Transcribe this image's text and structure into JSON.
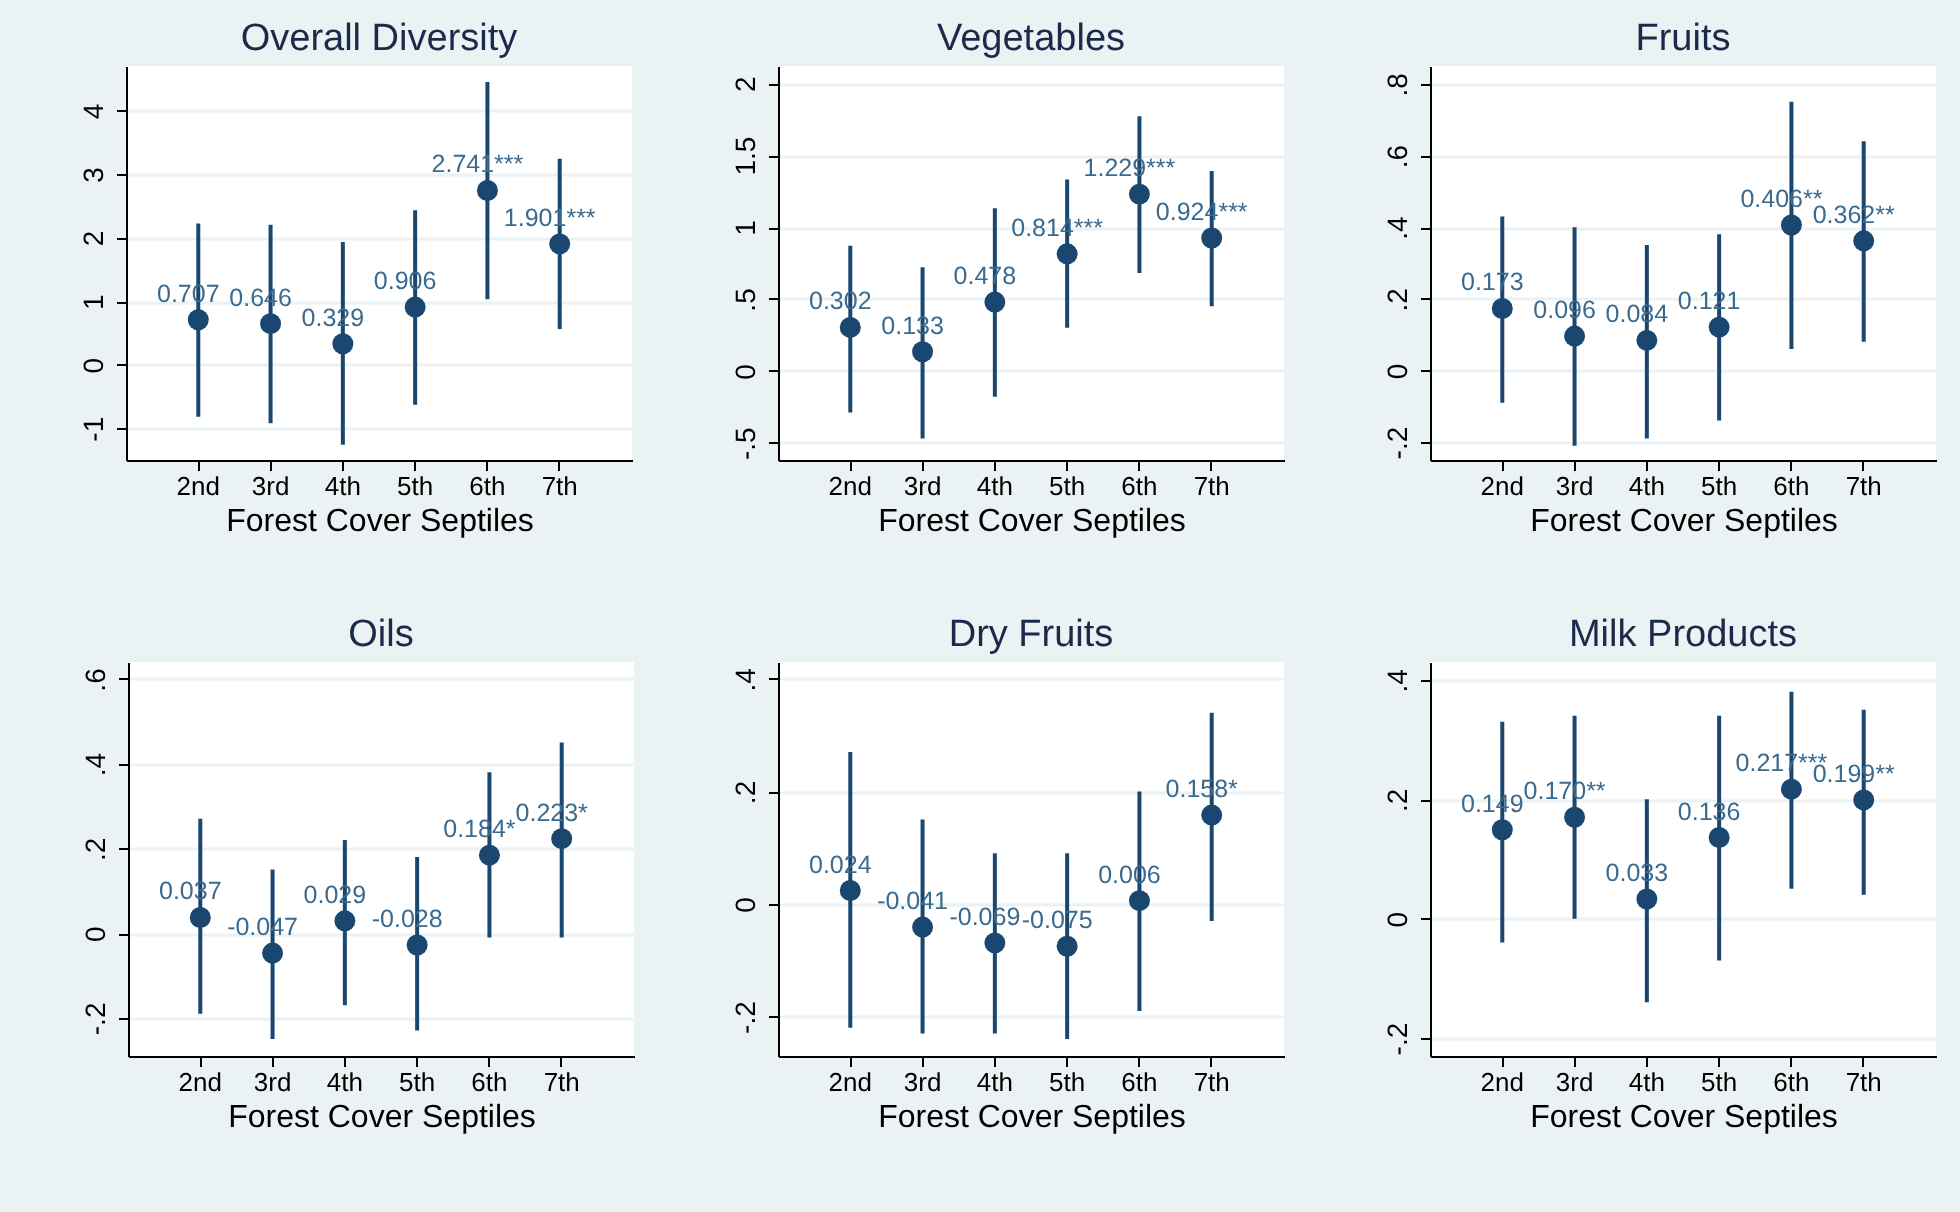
{
  "chart_data": [
    {
      "type": "scatter",
      "title": "Overall Diversity",
      "xlabel": "Forest Cover Septiles",
      "categories": [
        "2nd",
        "3rd",
        "4th",
        "5th",
        "6th",
        "7th"
      ],
      "values": [
        0.707,
        0.646,
        0.329,
        0.906,
        2.741,
        1.901
      ],
      "value_labels": [
        "0.707",
        "0.646",
        "0.329",
        "0.906",
        "2.741***",
        "1.901***"
      ],
      "errors": [
        [
          -0.82,
          2.22
        ],
        [
          -0.92,
          2.2
        ],
        [
          -1.26,
          1.93
        ],
        [
          -0.63,
          2.43
        ],
        [
          1.03,
          4.45
        ],
        [
          0.56,
          3.24
        ]
      ],
      "color": "#1a476f",
      "marker": "circle",
      "grid": "y",
      "ylim": [
        -1.5,
        4.7
      ],
      "yticks": [
        -1,
        0,
        1,
        2,
        3,
        4
      ]
    },
    {
      "type": "scatter",
      "title": "Vegetables",
      "xlabel": "Forest Cover Septiles",
      "categories": [
        "2nd",
        "3rd",
        "4th",
        "5th",
        "6th",
        "7th"
      ],
      "values": [
        0.302,
        0.133,
        0.478,
        0.814,
        1.229,
        0.924
      ],
      "value_labels": [
        "0.302",
        "0.133",
        "0.478",
        "0.814***",
        "1.229***",
        "0.924***"
      ],
      "errors": [
        [
          -0.29,
          0.87
        ],
        [
          -0.47,
          0.72
        ],
        [
          -0.18,
          1.13
        ],
        [
          0.3,
          1.33
        ],
        [
          0.68,
          1.77
        ],
        [
          0.45,
          1.39
        ]
      ],
      "color": "#1a476f",
      "marker": "circle",
      "grid": "y",
      "ylim": [
        -0.62,
        2.12
      ],
      "yticks": [
        {
          "value": -0.5,
          "label": "-.5"
        },
        0,
        {
          "value": 0.5,
          "label": ".5"
        },
        1,
        1.5,
        2
      ]
    },
    {
      "type": "scatter",
      "title": "Fruits",
      "xlabel": "Forest Cover Septiles",
      "categories": [
        "2nd",
        "3rd",
        "4th",
        "5th",
        "6th",
        "7th"
      ],
      "values": [
        0.173,
        0.096,
        0.084,
        0.121,
        0.406,
        0.362
      ],
      "value_labels": [
        "0.173",
        "0.096",
        "0.084",
        "0.121",
        "0.406**",
        "0.362**"
      ],
      "errors": [
        [
          -0.09,
          0.43
        ],
        [
          -0.21,
          0.4
        ],
        [
          -0.19,
          0.35
        ],
        [
          -0.14,
          0.38
        ],
        [
          0.06,
          0.75
        ],
        [
          0.08,
          0.64
        ]
      ],
      "color": "#1a476f",
      "marker": "circle",
      "grid": "y",
      "ylim": [
        -0.25,
        0.85
      ],
      "yticks": [
        {
          "value": -0.2,
          "label": "-.2"
        },
        0,
        {
          "value": 0.2,
          "label": ".2"
        },
        {
          "value": 0.4,
          "label": ".4"
        },
        {
          "value": 0.6,
          "label": ".6"
        },
        {
          "value": 0.8,
          "label": ".8"
        }
      ]
    },
    {
      "type": "scatter",
      "title": "Oils",
      "xlabel": "Forest Cover Septiles",
      "categories": [
        "2nd",
        "3rd",
        "4th",
        "5th",
        "6th",
        "7th"
      ],
      "values": [
        0.037,
        -0.047,
        0.029,
        -0.028,
        0.184,
        0.223
      ],
      "value_labels": [
        "0.037",
        "-0.047",
        "0.029",
        "-0.028",
        "0.184*",
        "0.223*"
      ],
      "errors": [
        [
          -0.19,
          0.27
        ],
        [
          -0.25,
          0.15
        ],
        [
          -0.17,
          0.22
        ],
        [
          -0.23,
          0.18
        ],
        [
          -0.01,
          0.38
        ],
        [
          -0.01,
          0.45
        ]
      ],
      "color": "#1a476f",
      "marker": "circle",
      "grid": "y",
      "ylim": [
        -0.29,
        0.64
      ],
      "yticks": [
        {
          "value": -0.2,
          "label": "-.2"
        },
        0,
        {
          "value": 0.2,
          "label": ".2"
        },
        {
          "value": 0.4,
          "label": ".4"
        },
        {
          "value": 0.6,
          "label": ".6"
        }
      ]
    },
    {
      "type": "scatter",
      "title": "Dry Fruits",
      "xlabel": "Forest Cover Septiles",
      "categories": [
        "2nd",
        "3rd",
        "4th",
        "5th",
        "6th",
        "7th"
      ],
      "values": [
        0.024,
        -0.041,
        -0.069,
        -0.075,
        0.006,
        0.158
      ],
      "value_labels": [
        "0.024",
        "-0.041",
        "-0.069",
        "-0.075",
        "0.006",
        "0.158*"
      ],
      "errors": [
        [
          -0.22,
          0.27
        ],
        [
          -0.23,
          0.15
        ],
        [
          -0.23,
          0.09
        ],
        [
          -0.24,
          0.09
        ],
        [
          -0.19,
          0.2
        ],
        [
          -0.03,
          0.34
        ]
      ],
      "color": "#1a476f",
      "marker": "circle",
      "grid": "y",
      "ylim": [
        -0.27,
        0.43
      ],
      "yticks": [
        {
          "value": -0.2,
          "label": "-.2"
        },
        0,
        {
          "value": 0.2,
          "label": ".2"
        },
        {
          "value": 0.4,
          "label": ".4"
        }
      ]
    },
    {
      "type": "scatter",
      "title": "Milk Products",
      "xlabel": "Forest Cover Septiles",
      "categories": [
        "2nd",
        "3rd",
        "4th",
        "5th",
        "6th",
        "7th"
      ],
      "values": [
        0.149,
        0.17,
        0.033,
        0.136,
        0.217,
        0.199
      ],
      "value_labels": [
        "0.149",
        "0.170**",
        "0.033",
        "0.136",
        "0.217***",
        "0.199**"
      ],
      "errors": [
        [
          -0.04,
          0.33
        ],
        [
          0.0,
          0.34
        ],
        [
          -0.14,
          0.2
        ],
        [
          -0.07,
          0.34
        ],
        [
          0.05,
          0.38
        ],
        [
          0.04,
          0.35
        ]
      ],
      "color": "#1a476f",
      "marker": "circle",
      "grid": "y",
      "ylim": [
        -0.23,
        0.43
      ],
      "yticks": [
        {
          "value": -0.2,
          "label": "-.2"
        },
        0,
        {
          "value": 0.2,
          "label": ".2"
        },
        {
          "value": 0.4,
          "label": ".4"
        }
      ]
    }
  ]
}
